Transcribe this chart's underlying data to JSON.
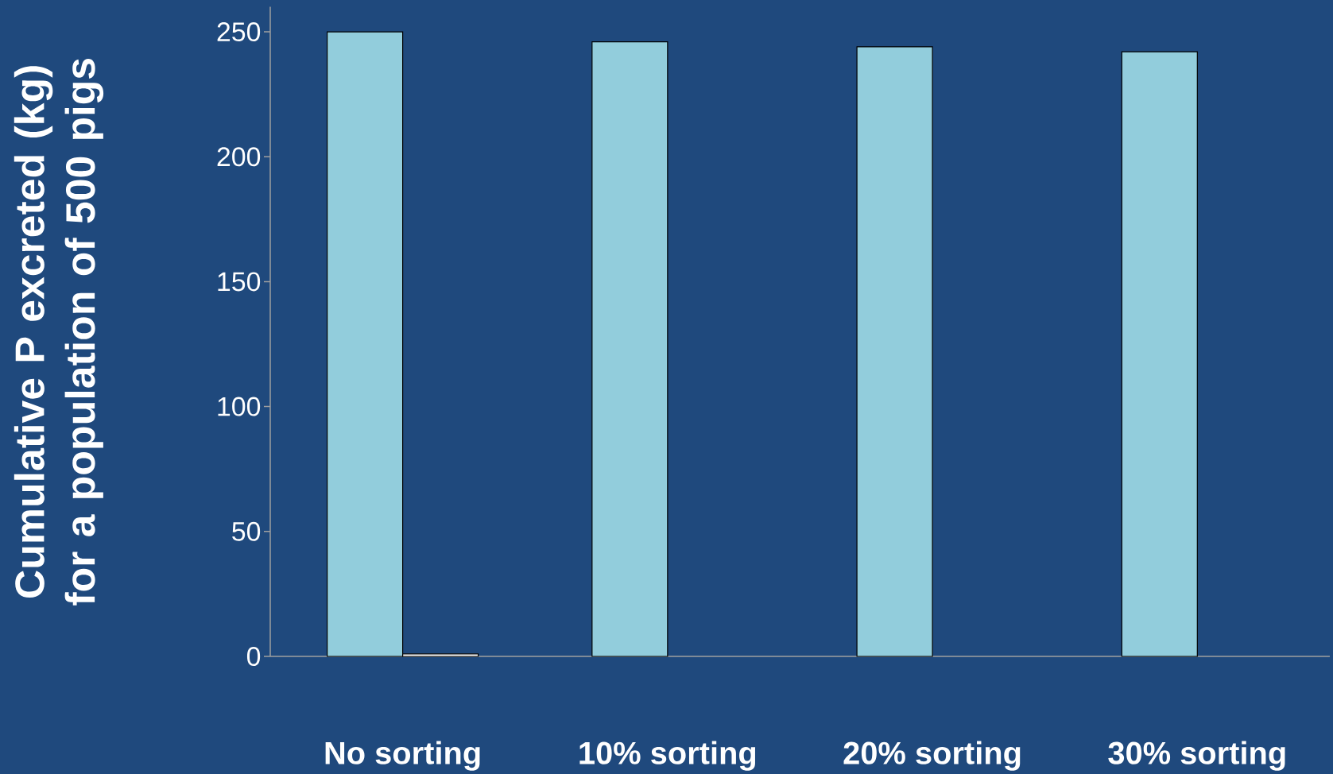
{
  "chart_data": {
    "type": "bar",
    "ylabel": "Cumulative P excreted (kg) for a population of 500 pigs",
    "categories": [
      "No sorting",
      "10% sorting",
      "20% sorting",
      "30% sorting"
    ],
    "series": [
      {
        "color": "#92cddc",
        "values": [
          250,
          246,
          244,
          242
        ]
      },
      {
        "color": "#ffffff",
        "values": [
          1,
          null,
          null,
          null
        ]
      }
    ],
    "ylim": [
      0,
      260
    ],
    "yticks": [
      0,
      50,
      100,
      150,
      200,
      250
    ],
    "grid": false
  }
}
